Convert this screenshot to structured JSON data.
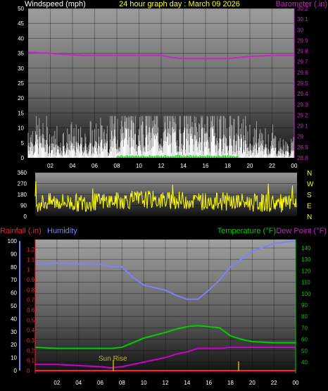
{
  "header": {
    "wind_label": "Windspeed (mph)",
    "title": "24 hour graph day : March 09 2026",
    "baro_label": "Barometer (.in)"
  },
  "lower_header": {
    "rain_label": "Rainfall (.in)",
    "humidity_label": "Humidity",
    "temp_label": "Temperature (°F)",
    "dew_label": "Dew Point (°F)"
  },
  "direction_labels": [
    "N",
    "W",
    "S",
    "E",
    "N"
  ],
  "annotation": {
    "sunrise": "Sun Rise"
  },
  "colors": {
    "wind": "#ffffff",
    "gust": "#a0a0a0",
    "barometer": "#cc22cc",
    "direction": "#ffff00",
    "humidity": "#8080ff",
    "temperature": "#00cc00",
    "dewpoint": "#cc00cc",
    "rain": "#ff2020",
    "sunrise": "#c8b400"
  },
  "chart_data": [
    {
      "type": "bar",
      "title": "24 hour graph day : March 09 2026",
      "ylabel": "Windspeed (mph)",
      "y2label": "Barometer (.in)",
      "x_ticks": [
        "02",
        "04",
        "06",
        "08",
        "10",
        "12",
        "14",
        "16",
        "18",
        "20",
        "22",
        "00"
      ],
      "ylim": [
        0,
        50
      ],
      "y_ticks": [
        0,
        5,
        10,
        15,
        20,
        25,
        30,
        35,
        40,
        45,
        50
      ],
      "y2lim": [
        28.8,
        30.2
      ],
      "y2_ticks": [
        "28.8",
        "28.9",
        "29",
        "29.1",
        "29.2",
        "29.3",
        "29.4",
        "29.5",
        "29.6",
        "29.7",
        "29.8",
        "29.9",
        "30",
        "30.1",
        "30.2"
      ],
      "series": [
        {
          "name": "Windspeed (mph)",
          "hours": [
            0,
            1,
            2,
            3,
            4,
            5,
            6,
            7,
            8,
            9,
            10,
            11,
            12,
            13,
            14,
            15,
            16,
            17,
            18,
            19,
            20,
            21,
            22,
            23,
            24
          ],
          "values": [
            3,
            3,
            2,
            2,
            2,
            2,
            2,
            3,
            4,
            5,
            5,
            4,
            4,
            4,
            4,
            4,
            4,
            4,
            3,
            3,
            2,
            2,
            2,
            1,
            1
          ]
        },
        {
          "name": "Barometer (.in)",
          "hours": [
            0,
            2,
            3,
            5,
            7,
            9,
            11,
            12,
            13,
            14,
            15,
            16,
            17,
            18,
            19,
            20,
            22,
            24
          ],
          "values": [
            29.79,
            29.78,
            29.77,
            29.76,
            29.76,
            29.76,
            29.76,
            29.76,
            29.74,
            29.73,
            29.73,
            29.73,
            29.73,
            29.73,
            29.74,
            29.75,
            29.76,
            29.76
          ]
        }
      ]
    },
    {
      "type": "line",
      "ylabel": "Wind direction (degrees)",
      "ylim": [
        0,
        360
      ],
      "y_ticks": [
        0,
        90,
        180,
        270,
        360
      ],
      "series": [
        {
          "name": "Wind direction",
          "hours": [
            0,
            2,
            4,
            6,
            8,
            10,
            12,
            14,
            16,
            18,
            20,
            22,
            24
          ],
          "values": [
            110,
            120,
            110,
            120,
            130,
            140,
            130,
            130,
            120,
            120,
            110,
            110,
            100
          ]
        }
      ]
    },
    {
      "type": "line",
      "x_ticks": [
        "02",
        "04",
        "06",
        "08",
        "10",
        "12",
        "14",
        "16",
        "18",
        "20",
        "22",
        "00"
      ],
      "humidity_ticks": [
        0,
        10,
        20,
        30,
        40,
        50,
        60,
        70,
        80,
        90,
        100
      ],
      "rain_ticks": [
        "0",
        "0.1",
        "0.2",
        "0.3",
        "0.4",
        "0.5",
        "0.6",
        "0.7",
        "0.8",
        "0.9",
        "1",
        "1.1",
        "1.2"
      ],
      "temp_ticks": [
        40,
        50,
        60,
        70,
        80,
        90,
        100,
        110,
        120,
        130,
        140
      ],
      "series": [
        {
          "name": "Humidity",
          "hours": [
            0,
            2,
            4,
            6,
            7,
            8,
            9,
            10,
            12,
            13,
            14,
            15,
            16,
            17,
            18,
            19,
            20,
            22,
            24
          ],
          "values": [
            82,
            83,
            82,
            82,
            80,
            80,
            72,
            66,
            62,
            58,
            55,
            55,
            62,
            70,
            80,
            86,
            92,
            98,
            100
          ]
        },
        {
          "name": "Temperature (°F)",
          "hours": [
            0,
            2,
            4,
            6,
            7,
            8,
            9,
            10,
            12,
            13,
            14,
            15,
            16,
            17,
            18,
            19,
            20,
            22,
            24
          ],
          "values": [
            53,
            52,
            52,
            52,
            52,
            53,
            57,
            61,
            66,
            69,
            71,
            72,
            71,
            70,
            63,
            60,
            58,
            57,
            57
          ]
        },
        {
          "name": "Dew Point (°F)",
          "hours": [
            0,
            2,
            4,
            6,
            7,
            8,
            9,
            10,
            12,
            13,
            14,
            15,
            16,
            17,
            18,
            19,
            20,
            22,
            24
          ],
          "values": [
            38,
            38,
            37,
            36,
            35,
            36,
            38,
            40,
            44,
            47,
            49,
            52,
            52,
            52,
            53,
            53,
            53,
            53,
            53
          ]
        },
        {
          "name": "Rainfall (.in)",
          "hours": [
            0,
            24
          ],
          "values": [
            0,
            0
          ]
        }
      ]
    }
  ]
}
